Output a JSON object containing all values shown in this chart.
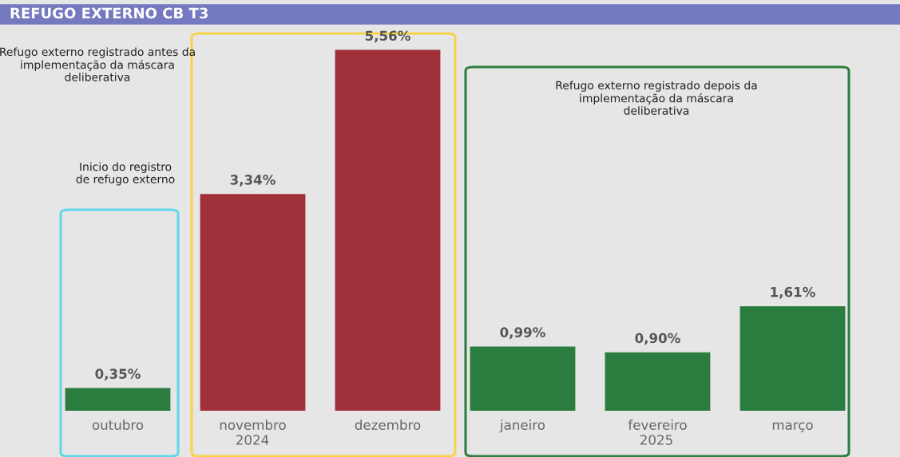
{
  "chart_data": {
    "type": "bar",
    "title": "REFUGO EXTERNO CB T3",
    "categories": [
      "outubro",
      "novembro",
      "dezembro",
      "janeiro",
      "fevereiro",
      "março"
    ],
    "values": [
      0.35,
      3.34,
      5.56,
      0.99,
      0.9,
      1.61
    ],
    "colors": [
      "#2b7d3f",
      "#a0303a",
      "#a0303a",
      "#2b7d3f",
      "#2b7d3f",
      "#2b7d3f"
    ],
    "value_labels": [
      "0,35%",
      "3,34%",
      "5,56%",
      "0,99%",
      "0,90%",
      "1,61%"
    ],
    "grid": false,
    "annotations": [
      "Refugo externo registrado antes da implementação da máscara deliberativa",
      "Inicio do registro de refugo externo",
      "Refugo externo registrado depois da implementação da máscara deliberativa",
      "2024",
      "2025"
    ]
  }
}
